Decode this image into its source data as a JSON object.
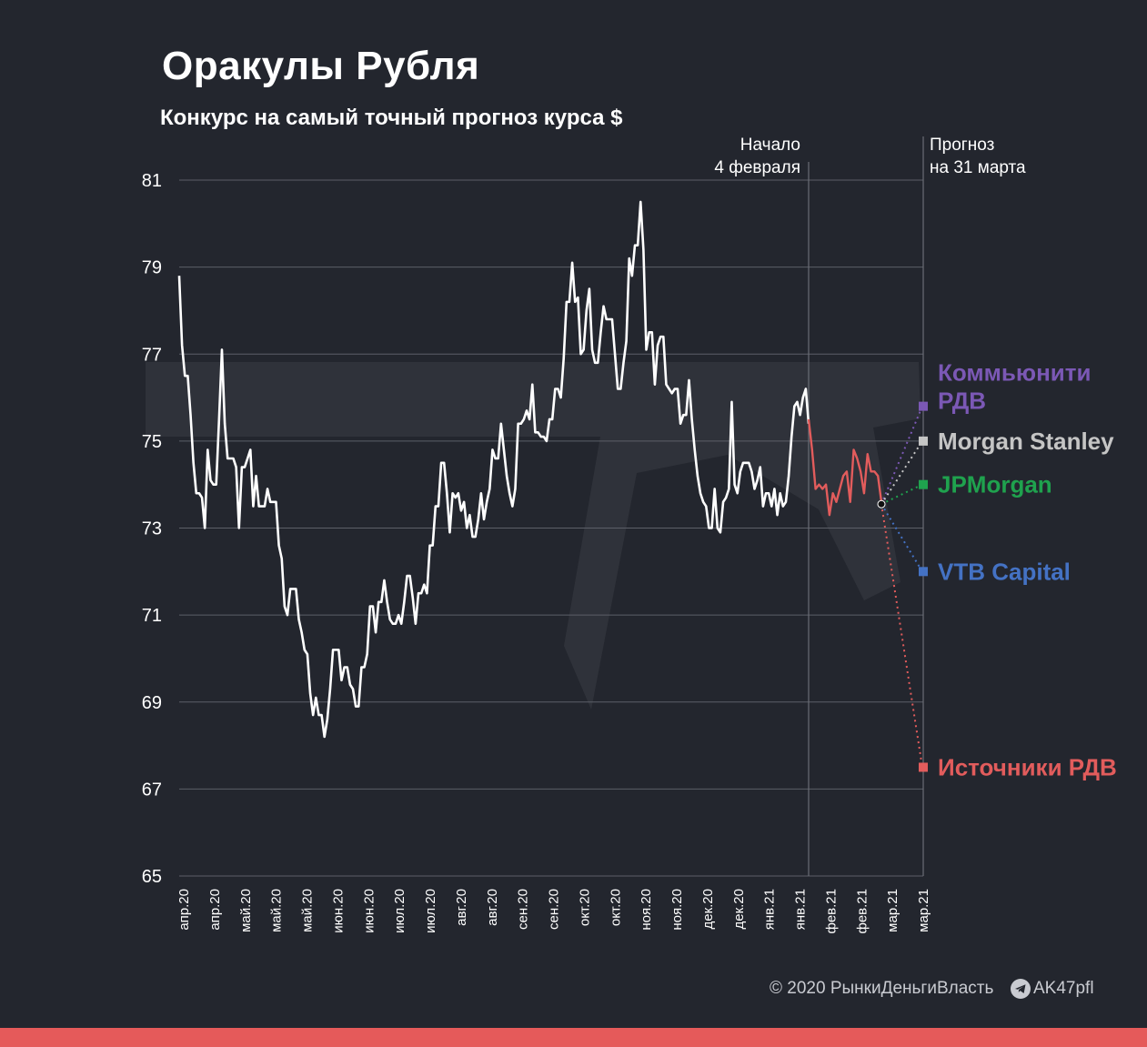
{
  "title": "Оракулы Рубля",
  "subtitle": "Конкурс на самый точный прогноз курса $",
  "footer": {
    "copyright": "© 2020 РынкиДеньгиВласть",
    "telegram_handle": "AK47pfl",
    "telegram_icon": "telegram-icon",
    "bar_color": "#e55a5a"
  },
  "chart_data": {
    "type": "line",
    "title": "Оракулы Рубля",
    "subtitle": "Конкурс на самый точный прогноз курса $",
    "ylim": [
      65,
      81
    ],
    "yticks": [
      65,
      67,
      69,
      71,
      73,
      75,
      77,
      79,
      81
    ],
    "grid": true,
    "xtick_labels": [
      "апр.20",
      "апр.20",
      "май.20",
      "май.20",
      "май.20",
      "июн.20",
      "июн.20",
      "июл.20",
      "июл.20",
      "авг.20",
      "авг.20",
      "сен.20",
      "сен.20",
      "окт.20",
      "окт.20",
      "ноя.20",
      "ноя.20",
      "дек.20",
      "дек.20",
      "янв.21",
      "янв.21",
      "фев.21",
      "фев.21",
      "мар.21",
      "мар.21"
    ],
    "annotations": {
      "start_marker": "Начало\n4 февраля",
      "forecast_marker": "Прогноз\nна 31 марта"
    },
    "history_color": "#ffffff",
    "recent_color": "#e25c5c",
    "history": [
      78.8,
      77.2,
      76.5,
      76.5,
      75.6,
      74.5,
      73.8,
      73.8,
      73.7,
      73.0,
      74.8,
      74.1,
      74.0,
      74.0,
      75.5,
      77.1,
      75.4,
      74.6,
      74.6,
      74.6,
      74.4,
      73.0,
      74.4,
      74.4,
      74.6,
      74.8,
      73.5,
      74.2,
      73.5,
      73.5,
      73.5,
      73.9,
      73.6,
      73.6,
      73.6,
      72.6,
      72.3,
      71.2,
      71.0,
      71.6,
      71.6,
      71.6,
      70.9,
      70.6,
      70.2,
      70.1,
      69.2,
      68.7,
      69.1,
      68.7,
      68.7,
      68.2,
      68.6,
      69.3,
      70.2,
      70.2,
      70.2,
      69.5,
      69.8,
      69.8,
      69.4,
      69.3,
      68.9,
      68.9,
      69.8,
      69.8,
      70.1,
      71.2,
      71.2,
      70.6,
      71.3,
      71.3,
      71.8,
      71.3,
      70.9,
      70.8,
      70.8,
      71.0,
      70.8,
      71.3,
      71.9,
      71.9,
      71.4,
      70.8,
      71.5,
      71.5,
      71.7,
      71.5,
      72.6,
      72.6,
      73.5,
      73.5,
      74.5,
      74.5,
      73.8,
      72.9,
      73.8,
      73.7,
      73.8,
      73.4,
      73.6,
      73.0,
      73.3,
      72.8,
      72.8,
      73.2,
      73.8,
      73.2,
      73.6,
      73.9,
      74.8,
      74.6,
      74.6,
      75.4,
      74.8,
      74.2,
      73.8,
      73.5,
      73.9,
      75.4,
      75.4,
      75.5,
      75.7,
      75.5,
      76.3,
      75.2,
      75.2,
      75.1,
      75.1,
      75.0,
      75.5,
      75.5,
      76.2,
      76.2,
      76.0,
      76.9,
      78.2,
      78.2,
      79.1,
      78.2,
      78.3,
      77.0,
      77.1,
      78.0,
      78.5,
      77.1,
      76.8,
      76.8,
      77.5,
      78.1,
      77.8,
      77.8,
      77.8,
      77.0,
      76.2,
      76.2,
      76.8,
      77.3,
      79.2,
      78.8,
      79.5,
      79.5,
      80.5,
      79.4,
      77.1,
      77.5,
      77.5,
      76.3,
      77.2,
      77.4,
      77.4,
      76.3,
      76.2,
      76.1,
      76.2,
      76.2,
      75.4,
      75.6,
      75.6,
      76.4,
      75.5,
      74.8,
      74.2,
      73.8,
      73.6,
      73.5,
      73.0,
      73.0,
      73.9,
      73.0,
      72.9,
      73.6,
      73.7,
      73.9,
      75.9,
      74.0,
      73.8,
      74.3,
      74.5,
      74.5,
      74.5,
      74.3,
      73.9,
      74.1,
      74.4,
      73.5,
      73.8,
      73.8,
      73.5,
      73.9,
      73.3,
      73.8,
      73.5,
      73.6,
      74.2,
      75.1,
      75.8,
      75.9,
      75.6,
      76.0,
      76.2,
      75.4
    ],
    "recent": [
      75.5,
      74.8,
      73.9,
      74.0,
      73.9,
      74.0,
      73.3,
      73.8,
      73.6,
      73.9,
      74.2,
      74.3,
      73.6,
      74.8,
      74.6,
      74.3,
      73.8,
      74.7,
      74.3,
      74.3,
      74.2,
      73.6
    ],
    "forecast_start": 73.55,
    "forecasts": [
      {
        "name": "Коммьюнити\nРДВ",
        "value": 75.8,
        "color": "#7b58b5"
      },
      {
        "name": "Morgan Stanley",
        "value": 75.0,
        "color": "#c5c5c5"
      },
      {
        "name": "JPMorgan",
        "value": 74.0,
        "color": "#1fa24e"
      },
      {
        "name": "VTB Capital",
        "value": 72.0,
        "color": "#4472c4"
      },
      {
        "name": "Источники РДВ",
        "value": 67.5,
        "color": "#e25c5c"
      }
    ]
  }
}
